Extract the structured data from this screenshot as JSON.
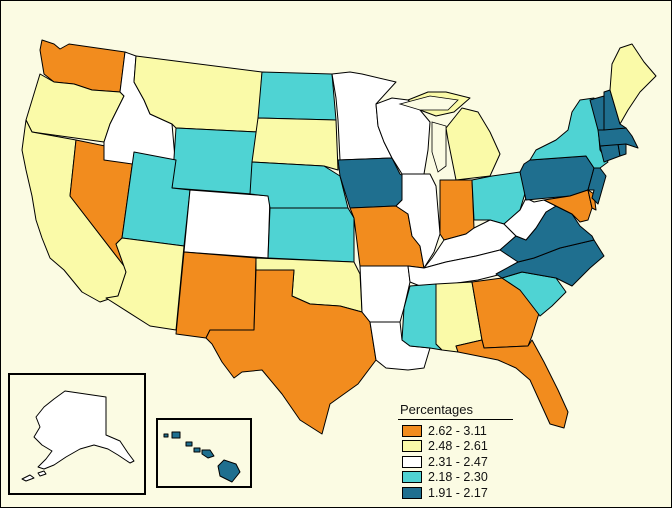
{
  "map": {
    "colors": {
      "c1": "#f28c1e",
      "c2": "#fafaa8",
      "c3": "#ffffff",
      "c4": "#4fd3d3",
      "c5": "#1f6f8f",
      "background": "#fbfbe3"
    },
    "state_classes": {
      "WA": "c1",
      "OR": "c2",
      "CA": "c2",
      "NV": "c1",
      "ID": "c3",
      "MT": "c2",
      "WY": "c4",
      "UT": "c4",
      "AZ": "c2",
      "CO": "c3",
      "NM": "c1",
      "ND": "c4",
      "SD": "c2",
      "NE": "c4",
      "KS": "c4",
      "OK": "c2",
      "TX": "c1",
      "MN": "c3",
      "IA": "c5",
      "MO": "c1",
      "AR": "c3",
      "LA": "c3",
      "WI": "c3",
      "IL": "c3",
      "MI": "c2",
      "IN": "c1",
      "OH": "c4",
      "KY": "c3",
      "TN": "c3",
      "MS": "c4",
      "AL": "c2",
      "GA": "c1",
      "FL": "c1",
      "SC": "c4",
      "NC": "c5",
      "VA": "c5",
      "WV": "c3",
      "PA": "c5",
      "NY": "c4",
      "MD": "c1",
      "DE": "c1",
      "NJ": "c5",
      "CT": "c5",
      "RI": "c5",
      "MA": "c5",
      "VT": "c5",
      "NH": "c5",
      "ME": "c2",
      "AK": "c3",
      "HI": "c5"
    }
  },
  "legend": {
    "title": "Percentages",
    "items": [
      {
        "label": "2.62 - 3.11",
        "color": "#f28c1e"
      },
      {
        "label": "2.48 - 2.61",
        "color": "#fafaa8"
      },
      {
        "label": "2.31 - 2.47",
        "color": "#ffffff"
      },
      {
        "label": "2.18 - 2.30",
        "color": "#4fd3d3"
      },
      {
        "label": "1.91 - 2.17",
        "color": "#1f6f8f"
      }
    ]
  }
}
